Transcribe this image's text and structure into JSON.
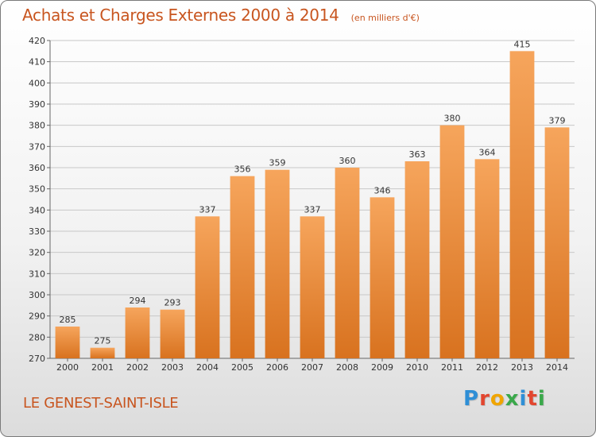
{
  "chart_title": "Achats et Charges Externes 2000 à 2014",
  "chart_subtitle": "(en milliers d'€)",
  "place_name": "LE GENEST-SAINT-ISLE",
  "logo": {
    "text": "Proxiti",
    "letter_colors": [
      "#2f8fd6",
      "#e2462f",
      "#f0a500",
      "#3aa84a",
      "#2f8fd6",
      "#e2462f",
      "#3aa84a"
    ]
  },
  "colors": {
    "bar_top": "#f6a55c",
    "bar_bottom": "#d8721f",
    "title": "#c8551f",
    "grid": "#c8c8c8"
  },
  "chart_data": {
    "type": "bar",
    "title": "Achats et Charges Externes 2000 à 2014",
    "subtitle": "(en milliers d'€)",
    "categories": [
      "2000",
      "2001",
      "2002",
      "2003",
      "2004",
      "2005",
      "2006",
      "2007",
      "2008",
      "2009",
      "2010",
      "2011",
      "2012",
      "2013",
      "2014"
    ],
    "values": [
      285,
      275,
      294,
      293,
      337,
      356,
      359,
      337,
      360,
      346,
      363,
      380,
      364,
      415,
      379
    ],
    "ylim": [
      270,
      420
    ],
    "yticks": [
      270,
      280,
      290,
      300,
      310,
      320,
      330,
      340,
      350,
      360,
      370,
      380,
      390,
      400,
      410,
      420
    ],
    "grid": true,
    "data_labels": true
  }
}
